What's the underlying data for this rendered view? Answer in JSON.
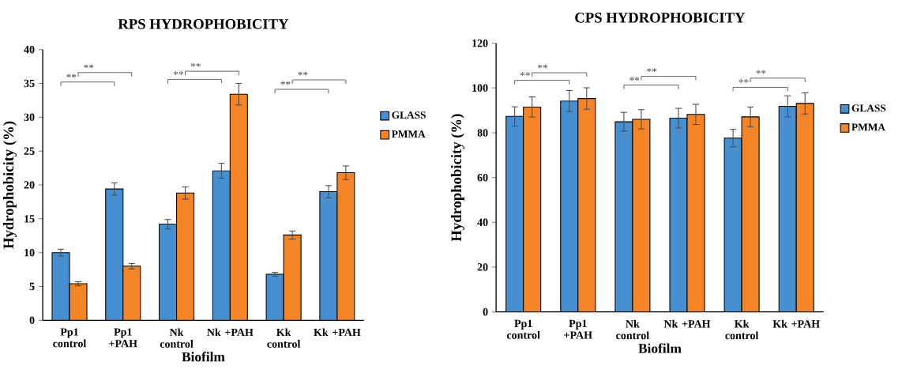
{
  "chart_data": [
    {
      "type": "bar",
      "title": "RPS HYDROPHOBICITY",
      "xlabel": "Biofilm",
      "ylabel": "Hydrophobicity  (%)",
      "categories": [
        "Pp1 control",
        "Pp1 +PAH",
        "Nk control",
        "Nk +PAH",
        "Kk control",
        "Kk +PAH"
      ],
      "series": [
        {
          "name": "GLASS",
          "color": "#4690d2",
          "values": [
            10.0,
            19.4,
            14.2,
            22.1,
            6.8,
            19.0
          ],
          "errors": [
            0.5,
            0.9,
            0.7,
            1.1,
            0.3,
            0.9
          ]
        },
        {
          "name": "PMMA",
          "color": "#f58426",
          "values": [
            5.4,
            8.0,
            18.8,
            33.4,
            12.6,
            21.8
          ],
          "errors": [
            0.3,
            0.4,
            0.9,
            1.6,
            0.6,
            1.0
          ]
        }
      ],
      "ylim": [
        0,
        40
      ],
      "yticks": [
        0,
        5,
        10,
        15,
        20,
        25,
        30,
        35,
        40
      ],
      "legend": "right",
      "grid": false,
      "annotations": [
        "**",
        "**",
        "**",
        "**",
        "**",
        "**"
      ]
    },
    {
      "type": "bar",
      "title": "CPS HYDROPHOBICITY",
      "xlabel": "Biofilm",
      "ylabel": "Hydrophobicity (%)",
      "categories": [
        "Pp1 control",
        "Pp1 +PAH",
        "Nk control",
        "Nk +PAH",
        "Kk control",
        "Kk +PAH"
      ],
      "series": [
        {
          "name": "GLASS",
          "color": "#4690d2",
          "values": [
            87.3,
            94.2,
            84.9,
            86.5,
            77.6,
            91.8
          ],
          "errors": [
            4.3,
            4.7,
            4.2,
            4.4,
            3.9,
            4.7
          ]
        },
        {
          "name": "PMMA",
          "color": "#f58426",
          "values": [
            91.5,
            95.3,
            86.0,
            88.2,
            87.1,
            93.1
          ],
          "errors": [
            4.5,
            4.8,
            4.3,
            4.5,
            4.4,
            4.7
          ]
        }
      ],
      "ylim": [
        0,
        120
      ],
      "yticks": [
        0,
        20,
        40,
        60,
        80,
        100,
        120
      ],
      "legend": "right",
      "grid": false,
      "annotations": [
        "**",
        "**",
        "**",
        "**",
        "**",
        "**"
      ]
    }
  ]
}
